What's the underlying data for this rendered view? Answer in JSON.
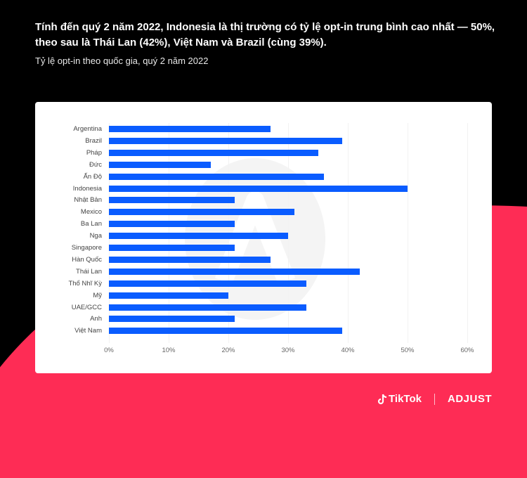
{
  "header": {
    "headline": "Tính đến quý 2 năm 2022, Indonesia là thị trường có tỷ lệ opt-in trung bình cao nhất — 50%, theo sau là Thái Lan (42%), Việt Nam và Brazil (cùng 39%).",
    "subtitle": "Tỷ lệ opt-in theo quốc gia, quý 2 năm 2022"
  },
  "footer": {
    "brand_1": "TikTok",
    "brand_2": "ADJUST"
  },
  "colors": {
    "background": "#000000",
    "accent_shape": "#fe2c55",
    "bar": "#0a5cff",
    "card": "#ffffff"
  },
  "chart_data": {
    "type": "bar",
    "orientation": "horizontal",
    "title": "Tỷ lệ opt-in theo quốc gia, quý 2 năm 2022",
    "xlabel": "",
    "ylabel": "",
    "categories": [
      "Argentina",
      "Brazil",
      "Pháp",
      "Đức",
      "Ấn Độ",
      "Indonesia",
      "Nhật Bản",
      "Mexico",
      "Ba Lan",
      "Nga",
      "Singapore",
      "Hàn Quốc",
      "Thái Lan",
      "Thổ Nhĩ Kỳ",
      "Mỹ",
      "UAE/GCC",
      "Anh",
      "Việt Nam"
    ],
    "values": [
      27,
      39,
      35,
      17,
      36,
      50,
      21,
      31,
      21,
      30,
      21,
      27,
      42,
      33,
      20,
      33,
      21,
      39
    ],
    "unit": "%",
    "xlim": [
      0,
      60
    ],
    "xticks": [
      "0%",
      "10%",
      "20%",
      "30%",
      "40%",
      "50%",
      "60%"
    ],
    "grid": true,
    "legend": null
  }
}
